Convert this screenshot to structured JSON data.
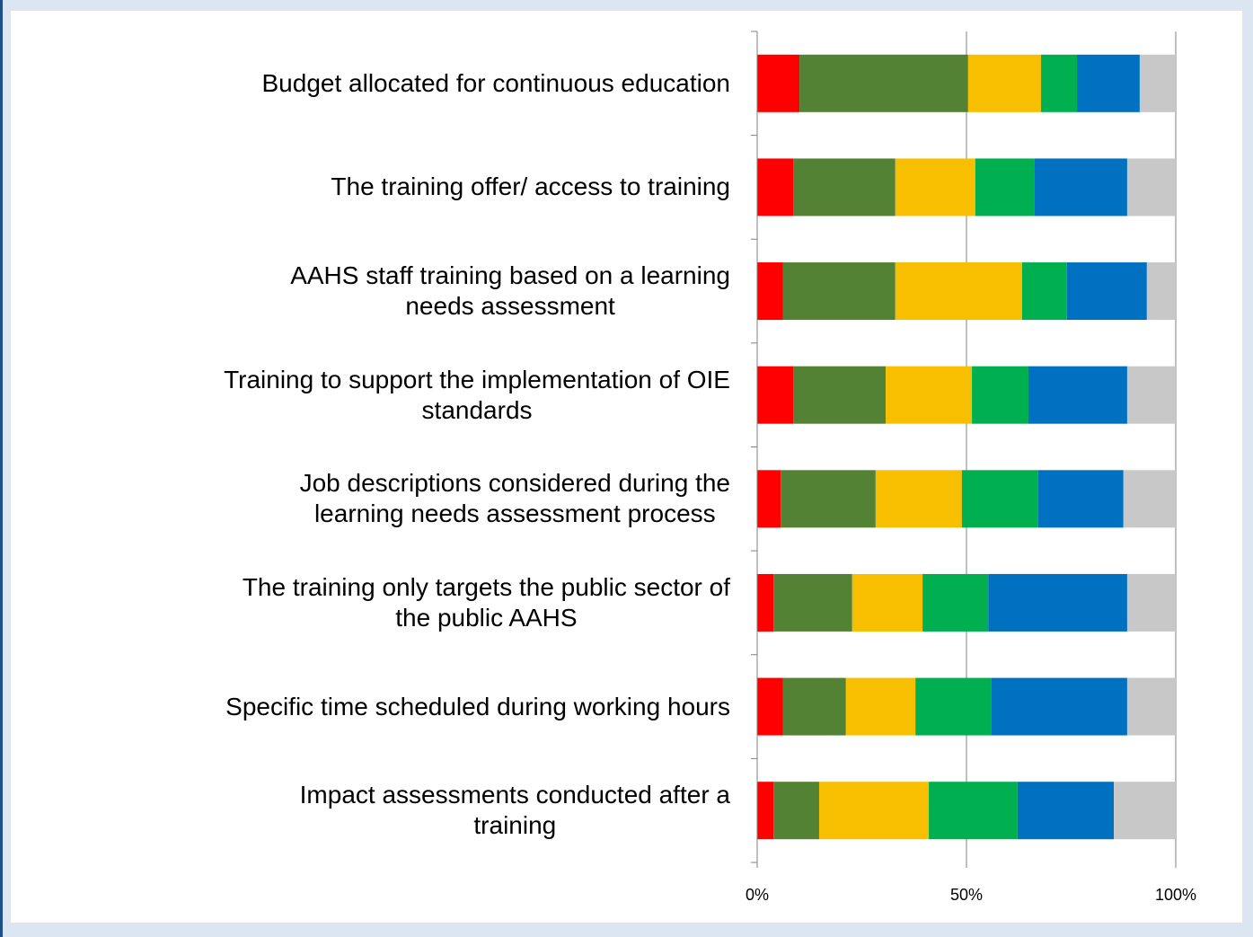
{
  "chart_data": {
    "type": "bar",
    "orientation": "horizontal",
    "stacked": true,
    "categories": [
      "Budget allocated for continuous education",
      "The training offer/ access to training",
      "AAHS staff training based on a learning\nneeds assessment",
      "Training to support the implementation of OIE\nstandards",
      "Job descriptions considered during the\nlearning needs assessment process",
      "The training only targets the public sector of\nthe public AAHS",
      "Specific time scheduled during working hours",
      "Impact assessments conducted after a\ntraining"
    ],
    "series": [
      {
        "color": "#ff0000",
        "values": [
          10.1,
          8.6,
          6.2,
          8.6,
          5.6,
          3.9,
          6.2,
          3.9
        ]
      },
      {
        "color": "#548235",
        "values": [
          40.3,
          24.4,
          26.8,
          22.1,
          22.7,
          18.8,
          15.0,
          10.9
        ]
      },
      {
        "color": "#f8bf00",
        "values": [
          17.4,
          19.1,
          30.3,
          20.6,
          20.6,
          16.8,
          16.6,
          26.2
        ]
      },
      {
        "color": "#00b050",
        "values": [
          8.6,
          14.2,
          10.7,
          13.5,
          18.2,
          15.7,
          18.2,
          21.2
        ]
      },
      {
        "color": "#0070c0",
        "values": [
          15.0,
          22.1,
          19.1,
          23.6,
          20.4,
          33.2,
          32.4,
          23.0
        ]
      },
      {
        "color": "#c8c8c8",
        "values": [
          8.6,
          11.6,
          6.9,
          11.6,
          12.5,
          11.6,
          11.6,
          14.8
        ]
      }
    ],
    "xlim": [
      0,
      100
    ],
    "xticks": [
      {
        "value": 0,
        "label": "0%"
      },
      {
        "value": 50,
        "label": "50%"
      },
      {
        "value": 100,
        "label": "100%"
      }
    ],
    "grid": true
  }
}
